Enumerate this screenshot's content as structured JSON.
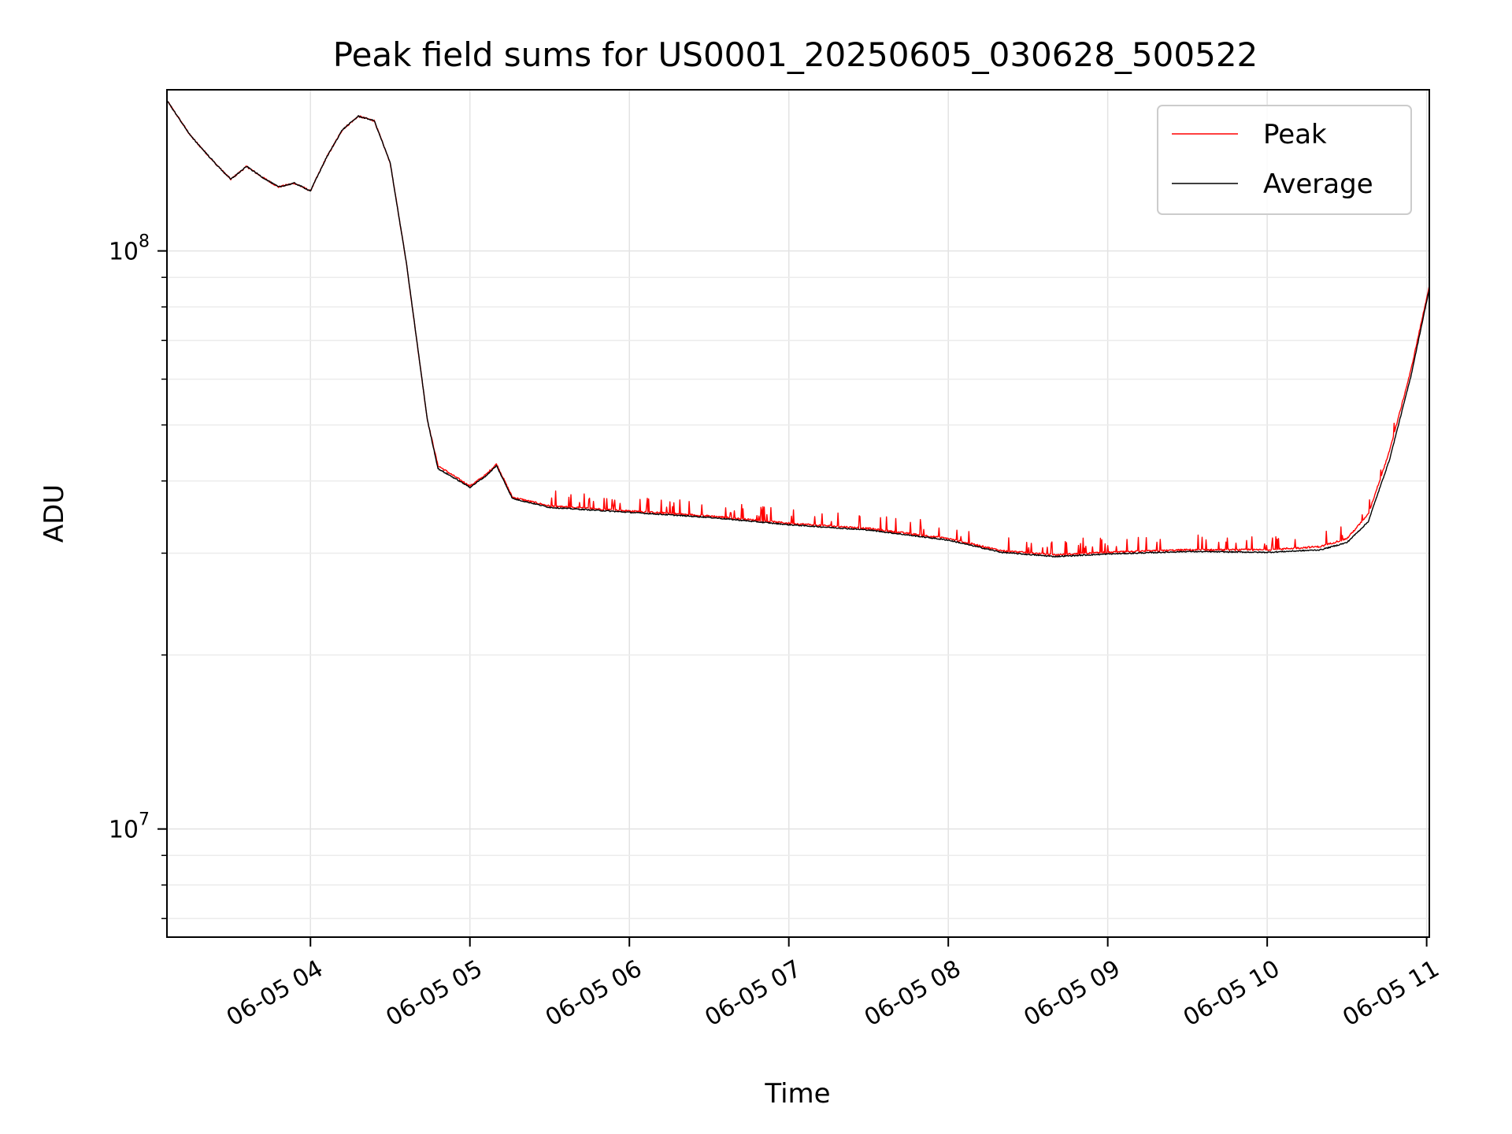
{
  "chart_data": {
    "type": "line",
    "title": "Peak field sums for US0001_20250605_030628_500522",
    "xlabel": "Time",
    "ylabel": "ADU",
    "yscale": "log",
    "xlim": [
      "06-05 03:06",
      "06-05 11:01"
    ],
    "ylim": [
      6500000,
      190000000
    ],
    "grid": true,
    "legend_position": "top-right",
    "x_ticks": [
      "06-05 04",
      "06-05 05",
      "06-05 06",
      "06-05 07",
      "06-05 08",
      "06-05 09",
      "06-05 10",
      "06-05 11"
    ],
    "y_ticks": [
      {
        "value": 10000000,
        "base": "10",
        "exp": "7"
      },
      {
        "value": 100000000,
        "base": "10",
        "exp": "8"
      }
    ],
    "series": [
      {
        "name": "Peak",
        "color": "#ff0000",
        "noise": "spiky",
        "points": [
          [
            "06-05 03:06",
            182000000
          ],
          [
            "06-05 03:15",
            158000000
          ],
          [
            "06-05 03:24",
            142000000
          ],
          [
            "06-05 03:30",
            133000000
          ],
          [
            "06-05 03:36",
            140000000
          ],
          [
            "06-05 03:42",
            134000000
          ],
          [
            "06-05 03:48",
            129000000
          ],
          [
            "06-05 03:54",
            131000000
          ],
          [
            "06-05 04:00",
            127000000
          ],
          [
            "06-05 04:06",
            145000000
          ],
          [
            "06-05 04:12",
            162000000
          ],
          [
            "06-05 04:18",
            171000000
          ],
          [
            "06-05 04:24",
            168000000
          ],
          [
            "06-05 04:30",
            142000000
          ],
          [
            "06-05 04:36",
            96000000
          ],
          [
            "06-05 04:40",
            70000000
          ],
          [
            "06-05 04:44",
            51000000
          ],
          [
            "06-05 04:48",
            42500000
          ],
          [
            "06-05 04:54",
            40800000
          ],
          [
            "06-05 05:00",
            39200000
          ],
          [
            "06-05 05:06",
            41000000
          ],
          [
            "06-05 05:10",
            42800000
          ],
          [
            "06-05 05:16",
            37500000
          ],
          [
            "06-05 05:30",
            36200000
          ],
          [
            "06-05 06:00",
            35500000
          ],
          [
            "06-05 06:30",
            34800000
          ],
          [
            "06-05 07:00",
            33800000
          ],
          [
            "06-05 07:30",
            33100000
          ],
          [
            "06-05 08:00",
            31800000
          ],
          [
            "06-05 08:20",
            30300000
          ],
          [
            "06-05 08:40",
            29800000
          ],
          [
            "06-05 09:00",
            30100000
          ],
          [
            "06-05 09:30",
            30400000
          ],
          [
            "06-05 10:00",
            30400000
          ],
          [
            "06-05 10:20",
            30800000
          ],
          [
            "06-05 10:30",
            31800000
          ],
          [
            "06-05 10:38",
            35000000
          ],
          [
            "06-05 10:46",
            45000000
          ],
          [
            "06-05 10:54",
            62000000
          ],
          [
            "06-05 11:01",
            87000000
          ]
        ]
      },
      {
        "name": "Average",
        "color": "#000000",
        "noise": "smooth",
        "points": [
          [
            "06-05 03:06",
            182000000
          ],
          [
            "06-05 03:15",
            158000000
          ],
          [
            "06-05 03:24",
            142000000
          ],
          [
            "06-05 03:30",
            133000000
          ],
          [
            "06-05 03:36",
            140000000
          ],
          [
            "06-05 03:42",
            134000000
          ],
          [
            "06-05 03:48",
            129000000
          ],
          [
            "06-05 03:54",
            131000000
          ],
          [
            "06-05 04:00",
            127000000
          ],
          [
            "06-05 04:06",
            145000000
          ],
          [
            "06-05 04:12",
            162000000
          ],
          [
            "06-05 04:18",
            171000000
          ],
          [
            "06-05 04:24",
            168000000
          ],
          [
            "06-05 04:30",
            142000000
          ],
          [
            "06-05 04:36",
            96000000
          ],
          [
            "06-05 04:40",
            70000000
          ],
          [
            "06-05 04:44",
            51000000
          ],
          [
            "06-05 04:48",
            42000000
          ],
          [
            "06-05 04:54",
            40500000
          ],
          [
            "06-05 05:00",
            39000000
          ],
          [
            "06-05 05:06",
            40800000
          ],
          [
            "06-05 05:10",
            42500000
          ],
          [
            "06-05 05:16",
            37300000
          ],
          [
            "06-05 05:30",
            36000000
          ],
          [
            "06-05 06:00",
            35300000
          ],
          [
            "06-05 06:30",
            34600000
          ],
          [
            "06-05 07:00",
            33600000
          ],
          [
            "06-05 07:30",
            32900000
          ],
          [
            "06-05 08:00",
            31600000
          ],
          [
            "06-05 08:20",
            30100000
          ],
          [
            "06-05 08:40",
            29600000
          ],
          [
            "06-05 09:00",
            29900000
          ],
          [
            "06-05 09:30",
            30200000
          ],
          [
            "06-05 10:00",
            30100000
          ],
          [
            "06-05 10:20",
            30400000
          ],
          [
            "06-05 10:30",
            31300000
          ],
          [
            "06-05 10:38",
            34000000
          ],
          [
            "06-05 10:46",
            43500000
          ],
          [
            "06-05 10:54",
            60500000
          ],
          [
            "06-05 11:01",
            86000000
          ]
        ]
      }
    ]
  }
}
